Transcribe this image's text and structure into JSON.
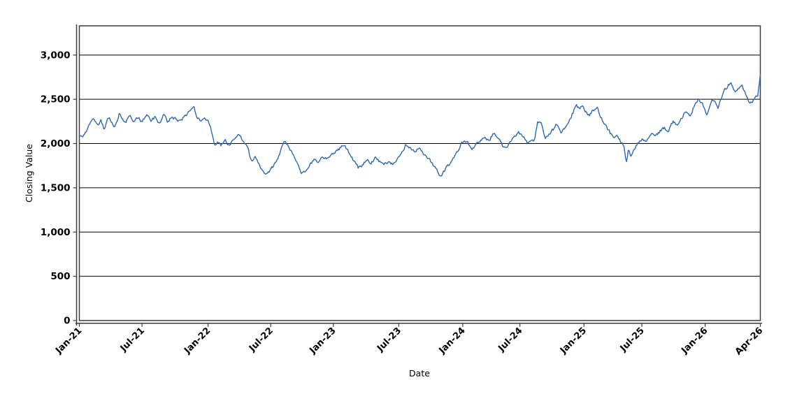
{
  "chart_data": {
    "type": "line",
    "title": "",
    "xlabel": "Date",
    "ylabel": "Closing Value",
    "grid": "horizontal",
    "legend": "none",
    "x_axis": {
      "ticks": [
        {
          "label": "Jan-21",
          "pos": 0.0
        },
        {
          "label": "Jul-21",
          "pos": 0.092
        },
        {
          "label": "Jan-22",
          "pos": 0.189
        },
        {
          "label": "Jul-22",
          "pos": 0.281
        },
        {
          "label": "Jan-23",
          "pos": 0.373
        },
        {
          "label": "Jul-23",
          "pos": 0.469
        },
        {
          "label": "Jan-24",
          "pos": 0.563
        },
        {
          "label": "Jul-24",
          "pos": 0.647
        },
        {
          "label": "Jan-25",
          "pos": 0.741
        },
        {
          "label": "Jul-25",
          "pos": 0.826
        },
        {
          "label": "Jan-26",
          "pos": 0.919
        },
        {
          "label": "Apr-26",
          "pos": 1.0
        }
      ]
    },
    "y_axis": {
      "min": 0,
      "max": 3330,
      "tick_values": [
        0,
        500,
        1000,
        1500,
        2000,
        2500,
        3000
      ],
      "tick_labels": [
        "0",
        "500",
        "1,000",
        "1,500",
        "2,000",
        "2,500",
        "3,000"
      ]
    },
    "series": [
      {
        "name": "Closing Value",
        "color": "#2e68b0",
        "x_unit": "months_since_Jan-21",
        "x_span_months": 63,
        "keypoints": [
          [
            0,
            2095
          ],
          [
            0.3,
            2060
          ],
          [
            0.8,
            2180
          ],
          [
            1.3,
            2290
          ],
          [
            1.8,
            2200
          ],
          [
            2.0,
            2270
          ],
          [
            2.3,
            2160
          ],
          [
            2.7,
            2300
          ],
          [
            3.0,
            2250
          ],
          [
            3.3,
            2185
          ],
          [
            3.7,
            2340
          ],
          [
            4.0,
            2280
          ],
          [
            4.3,
            2250
          ],
          [
            4.7,
            2310
          ],
          [
            5.0,
            2230
          ],
          [
            5.4,
            2300
          ],
          [
            5.8,
            2240
          ],
          [
            6.2,
            2330
          ],
          [
            6.6,
            2250
          ],
          [
            7.0,
            2300
          ],
          [
            7.4,
            2235
          ],
          [
            7.8,
            2320
          ],
          [
            8.2,
            2240
          ],
          [
            8.6,
            2300
          ],
          [
            9.0,
            2270
          ],
          [
            9.4,
            2250
          ],
          [
            9.8,
            2310
          ],
          [
            10.2,
            2370
          ],
          [
            10.55,
            2430
          ],
          [
            10.9,
            2300
          ],
          [
            11.2,
            2260
          ],
          [
            11.6,
            2310
          ],
          [
            11.9,
            2250
          ],
          [
            12.2,
            2160
          ],
          [
            12.5,
            2000
          ],
          [
            12.8,
            2010
          ],
          [
            13.1,
            1975
          ],
          [
            13.5,
            2040
          ],
          [
            13.9,
            1960
          ],
          [
            14.3,
            2060
          ],
          [
            14.7,
            2110
          ],
          [
            15.1,
            2050
          ],
          [
            15.5,
            1985
          ],
          [
            15.9,
            1800
          ],
          [
            16.3,
            1855
          ],
          [
            16.8,
            1700
          ],
          [
            17.2,
            1655
          ],
          [
            17.7,
            1700
          ],
          [
            18.2,
            1790
          ],
          [
            18.7,
            1945
          ],
          [
            19.0,
            2030
          ],
          [
            19.4,
            1960
          ],
          [
            19.8,
            1880
          ],
          [
            20.2,
            1760
          ],
          [
            20.5,
            1660
          ],
          [
            20.9,
            1690
          ],
          [
            21.3,
            1755
          ],
          [
            21.7,
            1820
          ],
          [
            22.1,
            1795
          ],
          [
            22.5,
            1850
          ],
          [
            22.9,
            1830
          ],
          [
            23.3,
            1870
          ],
          [
            23.7,
            1910
          ],
          [
            24.1,
            1945
          ],
          [
            24.5,
            1995
          ],
          [
            24.9,
            1905
          ],
          [
            25.4,
            1800
          ],
          [
            25.8,
            1730
          ],
          [
            26.2,
            1760
          ],
          [
            26.6,
            1815
          ],
          [
            27.0,
            1780
          ],
          [
            27.4,
            1850
          ],
          [
            27.8,
            1795
          ],
          [
            28.2,
            1770
          ],
          [
            28.6,
            1800
          ],
          [
            29.0,
            1775
          ],
          [
            29.4,
            1810
          ],
          [
            29.8,
            1890
          ],
          [
            30.2,
            1985
          ],
          [
            30.6,
            1945
          ],
          [
            31.0,
            1905
          ],
          [
            31.4,
            1950
          ],
          [
            31.9,
            1870
          ],
          [
            32.4,
            1820
          ],
          [
            32.9,
            1730
          ],
          [
            33.4,
            1635
          ],
          [
            33.8,
            1700
          ],
          [
            34.3,
            1780
          ],
          [
            34.8,
            1870
          ],
          [
            35.2,
            1965
          ],
          [
            35.6,
            2045
          ],
          [
            36.0,
            1995
          ],
          [
            36.3,
            1940
          ],
          [
            36.7,
            1990
          ],
          [
            37.1,
            2030
          ],
          [
            37.5,
            2060
          ],
          [
            37.9,
            2040
          ],
          [
            38.4,
            2120
          ],
          [
            38.8,
            2060
          ],
          [
            39.1,
            1990
          ],
          [
            39.4,
            1935
          ],
          [
            39.8,
            2000
          ],
          [
            40.2,
            2075
          ],
          [
            40.6,
            2130
          ],
          [
            41.0,
            2085
          ],
          [
            41.4,
            2010
          ],
          [
            41.8,
            2025
          ],
          [
            42.1,
            2035
          ],
          [
            42.4,
            2270
          ],
          [
            42.7,
            2230
          ],
          [
            43.1,
            2070
          ],
          [
            43.5,
            2105
          ],
          [
            43.9,
            2170
          ],
          [
            44.2,
            2230
          ],
          [
            44.6,
            2125
          ],
          [
            45.0,
            2200
          ],
          [
            45.4,
            2280
          ],
          [
            45.7,
            2360
          ],
          [
            46.0,
            2420
          ],
          [
            46.3,
            2395
          ],
          [
            46.6,
            2430
          ],
          [
            46.9,
            2350
          ],
          [
            47.2,
            2320
          ],
          [
            47.5,
            2380
          ],
          [
            47.9,
            2400
          ],
          [
            48.2,
            2310
          ],
          [
            48.6,
            2215
          ],
          [
            49.0,
            2140
          ],
          [
            49.4,
            2060
          ],
          [
            49.8,
            2100
          ],
          [
            50.1,
            2010
          ],
          [
            50.4,
            1965
          ],
          [
            50.6,
            1775
          ],
          [
            50.8,
            1935
          ],
          [
            51.0,
            1860
          ],
          [
            51.3,
            1925
          ],
          [
            51.7,
            2005
          ],
          [
            52.1,
            2050
          ],
          [
            52.5,
            2020
          ],
          [
            52.9,
            2105
          ],
          [
            53.3,
            2075
          ],
          [
            53.7,
            2140
          ],
          [
            54.1,
            2175
          ],
          [
            54.5,
            2145
          ],
          [
            54.9,
            2245
          ],
          [
            55.3,
            2215
          ],
          [
            55.7,
            2290
          ],
          [
            56.1,
            2350
          ],
          [
            56.5,
            2305
          ],
          [
            56.9,
            2430
          ],
          [
            57.3,
            2500
          ],
          [
            57.7,
            2440
          ],
          [
            58.0,
            2310
          ],
          [
            58.4,
            2470
          ],
          [
            58.8,
            2500
          ],
          [
            59.1,
            2400
          ],
          [
            59.5,
            2560
          ],
          [
            59.9,
            2640
          ],
          [
            60.3,
            2700
          ],
          [
            60.6,
            2585
          ],
          [
            61.0,
            2620
          ],
          [
            61.3,
            2670
          ],
          [
            61.6,
            2565
          ],
          [
            62.0,
            2470
          ],
          [
            62.2,
            2450
          ],
          [
            62.5,
            2520
          ],
          [
            62.75,
            2535
          ],
          [
            62.9,
            2660
          ],
          [
            63,
            2780
          ]
        ]
      }
    ],
    "noise": {
      "amplitude": 18,
      "seed": 77
    }
  },
  "style": {
    "background": "#ffffff",
    "line_color": "#2e68b0",
    "grid_color": "#000000",
    "frame_color": "#3c3c3c",
    "axis_color": "#3c3c3c",
    "tick_label_color": "#000000",
    "axis_title_color": "#000000"
  }
}
